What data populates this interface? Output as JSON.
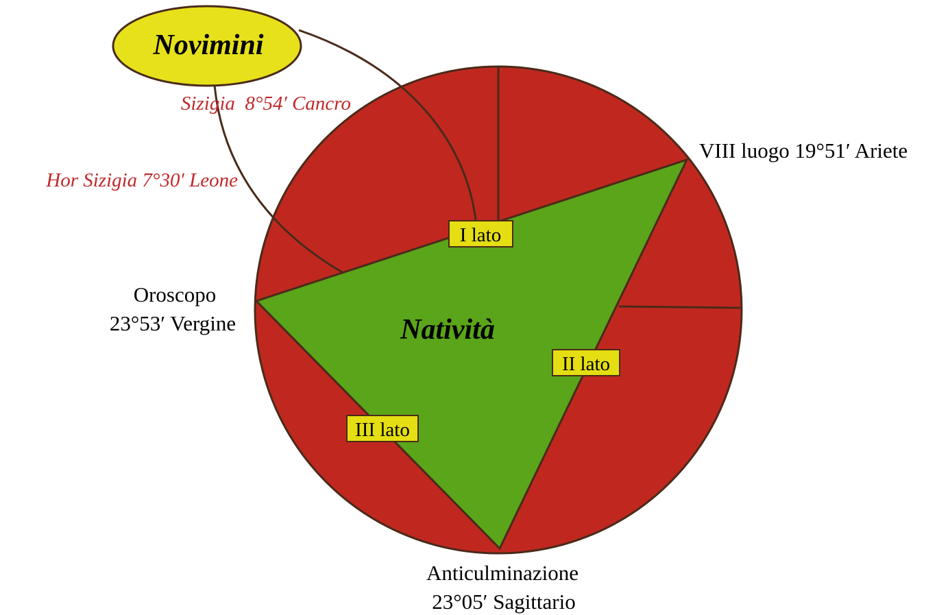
{
  "colors": {
    "circle_fill": "#c0281f",
    "triangle_fill": "#5aa51a",
    "stroke": "#4a2a1a",
    "box_fill": "#e4de12",
    "ellipse_fill": "#e6e11a",
    "red_text": "#c0282a"
  },
  "novimini": {
    "label": "Novimini"
  },
  "nativita": {
    "label": "Natività"
  },
  "sizigia": {
    "label": "Sizigia  8°54′ Cancro"
  },
  "hor_sizigia": {
    "label": "Hor Sizigia 7°30′ Leone"
  },
  "viii_luogo": {
    "label": "VIII luogo 19°51′ Ariete"
  },
  "oroscopo": {
    "line1": "Oroscopo",
    "line2": "23°53′ Vergine"
  },
  "anticulminazione": {
    "line1": "Anticulminazione",
    "line2": "23°05′ Sagittario"
  },
  "sides": {
    "first": "I lato",
    "second": "II lato",
    "third": "III lato"
  }
}
